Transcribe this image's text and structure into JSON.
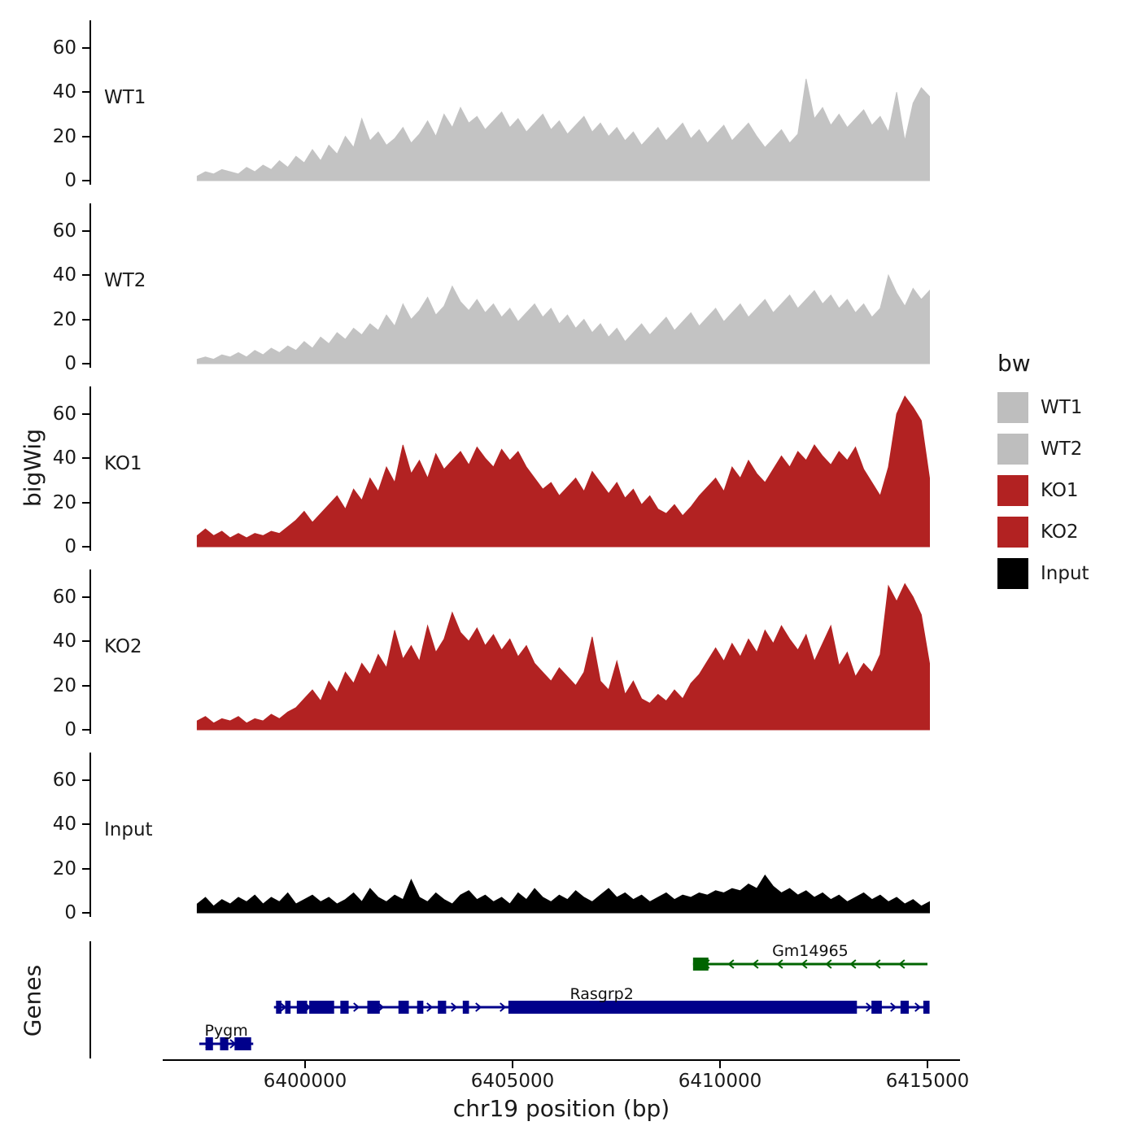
{
  "ylab": "bigWig",
  "genes_lab": "Genes",
  "xlab": "chr19 position (bp)",
  "y_ticks": [
    "0",
    "20",
    "40",
    "60"
  ],
  "x_axis": {
    "ticks": [
      6400000,
      6405000,
      6410000,
      6415000
    ],
    "labels": [
      "6400000",
      "6405000",
      "6410000",
      "6415000"
    ]
  },
  "legend": {
    "title": "bw",
    "entries": [
      {
        "label": "WT1",
        "color": "#bebebe"
      },
      {
        "label": "WT2",
        "color": "#bebebe"
      },
      {
        "label": "KO1",
        "color": "#b22222"
      },
      {
        "label": "KO2",
        "color": "#b22222"
      },
      {
        "label": "Input",
        "color": "#000000"
      }
    ]
  },
  "chart_data": {
    "type": "area",
    "title": "",
    "xlabel": "chr19 position (bp)",
    "ylabel": "bigWig",
    "ylim": [
      0,
      70
    ],
    "x_start": 6397400,
    "x_end": 6415050,
    "x_ticks": [
      6400000,
      6405000,
      6410000,
      6415000
    ],
    "tracks": [
      {
        "name": "WT1",
        "color": "#c3c3c3",
        "values": [
          2,
          4,
          3,
          5,
          4,
          3,
          6,
          4,
          7,
          5,
          9,
          6,
          11,
          8,
          14,
          9,
          16,
          12,
          20,
          15,
          28,
          18,
          22,
          16,
          19,
          24,
          17,
          21,
          27,
          20,
          30,
          24,
          33,
          26,
          29,
          23,
          27,
          31,
          24,
          28,
          22,
          26,
          30,
          23,
          27,
          21,
          25,
          29,
          22,
          26,
          20,
          24,
          18,
          22,
          16,
          20,
          24,
          18,
          22,
          26,
          19,
          23,
          17,
          21,
          25,
          18,
          22,
          26,
          20,
          15,
          19,
          23,
          17,
          21,
          46,
          28,
          33,
          25,
          30,
          24,
          28,
          32,
          25,
          29,
          22,
          40,
          18,
          35,
          42,
          38
        ]
      },
      {
        "name": "WT2",
        "color": "#c3c3c3",
        "values": [
          2,
          3,
          2,
          4,
          3,
          5,
          3,
          6,
          4,
          7,
          5,
          8,
          6,
          10,
          7,
          12,
          9,
          14,
          11,
          16,
          13,
          18,
          15,
          22,
          17,
          27,
          20,
          24,
          30,
          22,
          26,
          35,
          28,
          24,
          29,
          23,
          27,
          21,
          25,
          19,
          23,
          27,
          21,
          25,
          18,
          22,
          16,
          20,
          14,
          18,
          12,
          16,
          10,
          14,
          18,
          13,
          17,
          21,
          15,
          19,
          23,
          17,
          21,
          25,
          19,
          23,
          27,
          21,
          25,
          29,
          23,
          27,
          31,
          25,
          29,
          33,
          27,
          31,
          25,
          29,
          23,
          27,
          21,
          25,
          40,
          32,
          26,
          34,
          29,
          33
        ]
      },
      {
        "name": "KO1",
        "color": "#b22222",
        "values": [
          5,
          8,
          5,
          7,
          4,
          6,
          4,
          6,
          5,
          7,
          6,
          9,
          12,
          16,
          11,
          15,
          19,
          23,
          17,
          26,
          21,
          31,
          25,
          36,
          29,
          46,
          33,
          39,
          31,
          42,
          35,
          39,
          43,
          37,
          45,
          40,
          36,
          44,
          39,
          43,
          36,
          31,
          26,
          29,
          23,
          27,
          31,
          25,
          34,
          29,
          24,
          29,
          22,
          26,
          19,
          23,
          17,
          15,
          19,
          14,
          18,
          23,
          27,
          31,
          25,
          36,
          31,
          39,
          33,
          29,
          35,
          41,
          36,
          43,
          39,
          46,
          41,
          37,
          43,
          39,
          45,
          35,
          29,
          23,
          36,
          60,
          68,
          63,
          57,
          31
        ]
      },
      {
        "name": "KO2",
        "color": "#b22222",
        "values": [
          4,
          6,
          3,
          5,
          4,
          6,
          3,
          5,
          4,
          7,
          5,
          8,
          10,
          14,
          18,
          13,
          22,
          17,
          26,
          21,
          30,
          25,
          34,
          28,
          45,
          32,
          38,
          31,
          47,
          35,
          41,
          53,
          44,
          40,
          46,
          38,
          43,
          36,
          41,
          33,
          38,
          30,
          26,
          22,
          28,
          24,
          20,
          26,
          42,
          22,
          18,
          31,
          16,
          22,
          14,
          12,
          16,
          13,
          18,
          14,
          21,
          25,
          31,
          37,
          31,
          39,
          33,
          41,
          35,
          45,
          39,
          47,
          41,
          36,
          43,
          31,
          39,
          47,
          29,
          35,
          24,
          30,
          26,
          34,
          65,
          58,
          66,
          60,
          52,
          30
        ]
      },
      {
        "name": "Input",
        "color": "#000000",
        "values": [
          4,
          7,
          3,
          6,
          4,
          7,
          5,
          8,
          4,
          7,
          5,
          9,
          4,
          6,
          8,
          5,
          7,
          4,
          6,
          9,
          5,
          11,
          7,
          5,
          8,
          6,
          15,
          7,
          5,
          9,
          6,
          4,
          8,
          10,
          6,
          8,
          5,
          7,
          4,
          9,
          6,
          11,
          7,
          5,
          8,
          6,
          10,
          7,
          5,
          8,
          11,
          7,
          9,
          6,
          8,
          5,
          7,
          9,
          6,
          8,
          7,
          9,
          8,
          10,
          9,
          11,
          10,
          13,
          11,
          17,
          12,
          9,
          11,
          8,
          10,
          7,
          9,
          6,
          8,
          5,
          7,
          9,
          6,
          8,
          5,
          7,
          4,
          6,
          3,
          5
        ]
      }
    ],
    "genes": [
      {
        "name": "Gm14965",
        "color": "#006400",
        "strand": "-",
        "start": 6409350,
        "end": 6415000,
        "row": 0,
        "exons": [
          [
            6409350,
            6409720
          ]
        ]
      },
      {
        "name": "Rasgrp2",
        "color": "#00008b",
        "strand": "+",
        "start": 6399250,
        "end": 6415050,
        "row": 1,
        "exons": [
          [
            6399300,
            6399430
          ],
          [
            6399520,
            6399650
          ],
          [
            6399800,
            6400050
          ],
          [
            6400100,
            6400700
          ],
          [
            6400850,
            6401050
          ],
          [
            6401500,
            6401800
          ],
          [
            6402250,
            6402500
          ],
          [
            6402700,
            6402850
          ],
          [
            6403200,
            6403400
          ],
          [
            6403800,
            6403950
          ],
          [
            6404900,
            6413300
          ],
          [
            6413650,
            6413900
          ],
          [
            6414350,
            6414550
          ],
          [
            6414900,
            6415050
          ]
        ]
      },
      {
        "name": "Pygm",
        "color": "#00008b",
        "strand": "+",
        "start": 6397450,
        "end": 6398750,
        "row": 2,
        "exons": [
          [
            6397600,
            6397780
          ],
          [
            6397950,
            6398150
          ],
          [
            6398300,
            6398700
          ]
        ]
      }
    ]
  }
}
